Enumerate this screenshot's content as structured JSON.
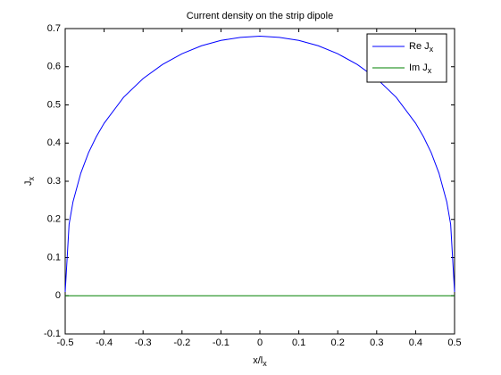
{
  "chart_data": {
    "type": "line",
    "title": "Current density on the strip dipole",
    "xlabel": "x/lx",
    "ylabel": "Jx",
    "x": [
      -0.5,
      -0.49,
      -0.48,
      -0.46,
      -0.44,
      -0.42,
      -0.4,
      -0.35,
      -0.3,
      -0.25,
      -0.2,
      -0.15,
      -0.1,
      -0.05,
      0,
      0.05,
      0.1,
      0.15,
      0.2,
      0.25,
      0.3,
      0.35,
      0.4,
      0.42,
      0.44,
      0.46,
      0.48,
      0.49,
      0.5
    ],
    "series": [
      {
        "name": "Re Jx",
        "color": "#0000ff",
        "values": [
          0.01,
          0.187,
          0.246,
          0.321,
          0.375,
          0.417,
          0.452,
          0.52,
          0.569,
          0.606,
          0.634,
          0.655,
          0.669,
          0.677,
          0.68,
          0.677,
          0.669,
          0.655,
          0.634,
          0.606,
          0.569,
          0.52,
          0.452,
          0.417,
          0.375,
          0.321,
          0.246,
          0.187,
          0.01
        ]
      },
      {
        "name": "Im Jx",
        "color": "#008000",
        "values": [
          0,
          0,
          0,
          0,
          0,
          0,
          0,
          0,
          0,
          0,
          0,
          0,
          0,
          0,
          0,
          0,
          0,
          0,
          0,
          0,
          0,
          0,
          0,
          0,
          0,
          0,
          0,
          0,
          0
        ]
      }
    ],
    "xlim": [
      -0.5,
      0.5
    ],
    "xticks": [
      -0.5,
      -0.4,
      -0.3,
      -0.2,
      -0.1,
      0,
      0.1,
      0.2,
      0.3,
      0.4,
      0.5
    ],
    "ylim": [
      -0.1,
      0.7
    ],
    "yticks": [
      -0.1,
      0,
      0.1,
      0.2,
      0.3,
      0.4,
      0.5,
      0.6,
      0.7
    ],
    "legend": "upper right"
  }
}
